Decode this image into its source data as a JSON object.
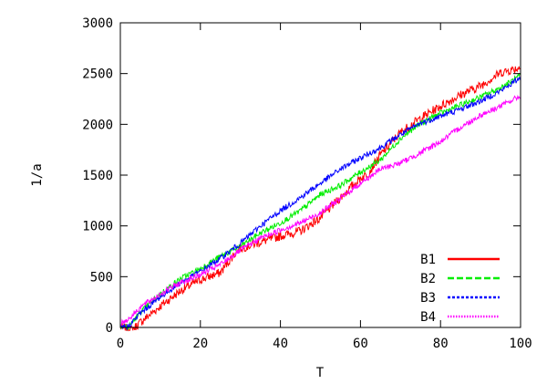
{
  "chart_data": {
    "type": "line",
    "xlabel": "T",
    "ylabel": "1/a",
    "xlim": [
      0,
      100
    ],
    "ylim": [
      0,
      3000
    ],
    "x_ticks": [
      0,
      20,
      40,
      60,
      80,
      100
    ],
    "y_ticks": [
      0,
      500,
      1000,
      1500,
      2000,
      2500,
      3000
    ],
    "grid": false,
    "legend_position": "bottom-right",
    "series": [
      {
        "name": "B1",
        "color": "#ff0000",
        "style": "solid",
        "x": [
          0,
          3,
          5,
          10,
          15,
          20,
          25,
          28,
          30,
          35,
          40,
          45,
          50,
          55,
          60,
          62,
          65,
          70,
          75,
          80,
          85,
          90,
          95,
          100
        ],
        "y": [
          0,
          -20,
          50,
          210,
          360,
          470,
          540,
          700,
          780,
          840,
          900,
          950,
          1080,
          1280,
          1470,
          1520,
          1700,
          1920,
          2060,
          2180,
          2290,
          2380,
          2510,
          2560
        ]
      },
      {
        "name": "B2",
        "color": "#00ee00",
        "style": "dashed",
        "x": [
          0,
          2,
          5,
          10,
          15,
          20,
          25,
          30,
          35,
          40,
          45,
          50,
          55,
          60,
          65,
          70,
          75,
          80,
          85,
          90,
          95,
          100
        ],
        "y": [
          20,
          0,
          150,
          330,
          480,
          580,
          700,
          800,
          930,
          1030,
          1150,
          1310,
          1400,
          1530,
          1650,
          1860,
          2010,
          2110,
          2190,
          2270,
          2360,
          2480
        ]
      },
      {
        "name": "B3",
        "color": "#0000ff",
        "style": "dotted",
        "x": [
          0,
          2,
          5,
          10,
          15,
          20,
          25,
          30,
          35,
          40,
          45,
          50,
          55,
          60,
          65,
          70,
          75,
          80,
          85,
          90,
          95,
          100
        ],
        "y": [
          0,
          10,
          140,
          300,
          440,
          550,
          680,
          830,
          1000,
          1150,
          1280,
          1420,
          1560,
          1670,
          1770,
          1900,
          2010,
          2080,
          2150,
          2230,
          2330,
          2460
        ]
      },
      {
        "name": "B4",
        "color": "#ff00ff",
        "style": "dotted-fine",
        "x": [
          0,
          2,
          5,
          10,
          15,
          20,
          25,
          30,
          35,
          40,
          45,
          50,
          55,
          60,
          65,
          70,
          75,
          80,
          85,
          90,
          95,
          100
        ],
        "y": [
          40,
          80,
          200,
          330,
          440,
          520,
          620,
          760,
          880,
          960,
          1030,
          1130,
          1270,
          1420,
          1560,
          1620,
          1720,
          1830,
          1970,
          2090,
          2180,
          2280
        ]
      }
    ]
  }
}
